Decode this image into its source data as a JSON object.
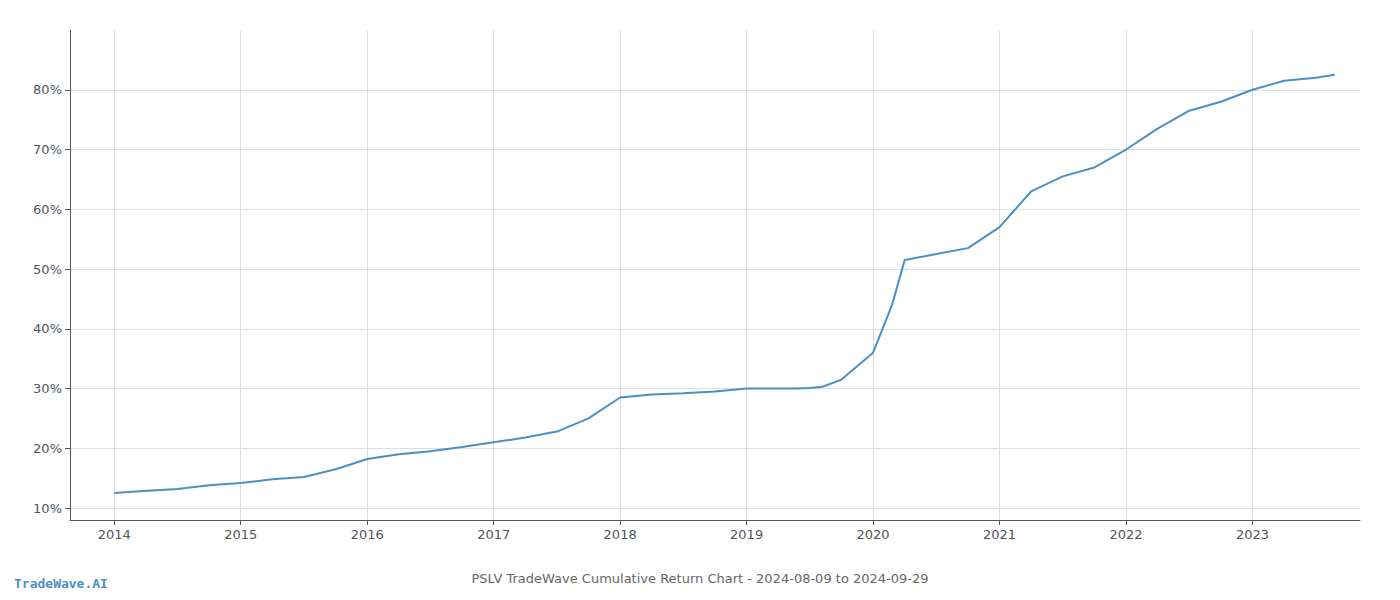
{
  "chart_data": {
    "type": "line",
    "title": "PSLV TradeWave Cumulative Return Chart - 2024-08-09 to 2024-09-29",
    "annotations": [
      "TradeWave.AI"
    ],
    "color": "#4a90c4",
    "x": [
      2014.0,
      2014.2,
      2014.5,
      2014.75,
      2015.0,
      2015.25,
      2015.5,
      2015.75,
      2016.0,
      2016.25,
      2016.5,
      2016.75,
      2017.0,
      2017.25,
      2017.5,
      2017.75,
      2018.0,
      2018.25,
      2018.5,
      2018.75,
      2019.0,
      2019.25,
      2019.4,
      2019.5,
      2019.6,
      2019.75,
      2020.0,
      2020.15,
      2020.25,
      2020.5,
      2020.75,
      2021.0,
      2021.25,
      2021.5,
      2021.75,
      2022.0,
      2022.25,
      2022.5,
      2022.75,
      2023.0,
      2023.25,
      2023.5,
      2023.65
    ],
    "values": [
      12.5,
      12.8,
      13.2,
      13.8,
      14.2,
      14.8,
      15.2,
      16.5,
      18.2,
      19.0,
      19.5,
      20.2,
      21.0,
      21.8,
      22.8,
      25.0,
      28.5,
      29.0,
      29.2,
      29.5,
      30.0,
      30.0,
      30.0,
      30.1,
      30.3,
      31.5,
      36.0,
      44.0,
      51.5,
      52.5,
      53.5,
      57.0,
      63.0,
      65.5,
      67.0,
      70.0,
      73.5,
      76.5,
      78.0,
      80.0,
      81.5,
      82.0,
      82.5
    ],
    "xlim": [
      2013.65,
      2023.85
    ],
    "ylim": [
      8,
      90
    ],
    "xticks": [
      2014,
      2015,
      2016,
      2017,
      2018,
      2019,
      2020,
      2021,
      2022,
      2023
    ],
    "yticks": [
      {
        "value": 10,
        "label": "10%"
      },
      {
        "value": 20,
        "label": "20%"
      },
      {
        "value": 30,
        "label": "30%"
      },
      {
        "value": 40,
        "label": "40%"
      },
      {
        "value": 50,
        "label": "50%"
      },
      {
        "value": 60,
        "label": "60%"
      },
      {
        "value": 70,
        "label": "70%"
      },
      {
        "value": 80,
        "label": "80%"
      }
    ],
    "grid": true
  }
}
